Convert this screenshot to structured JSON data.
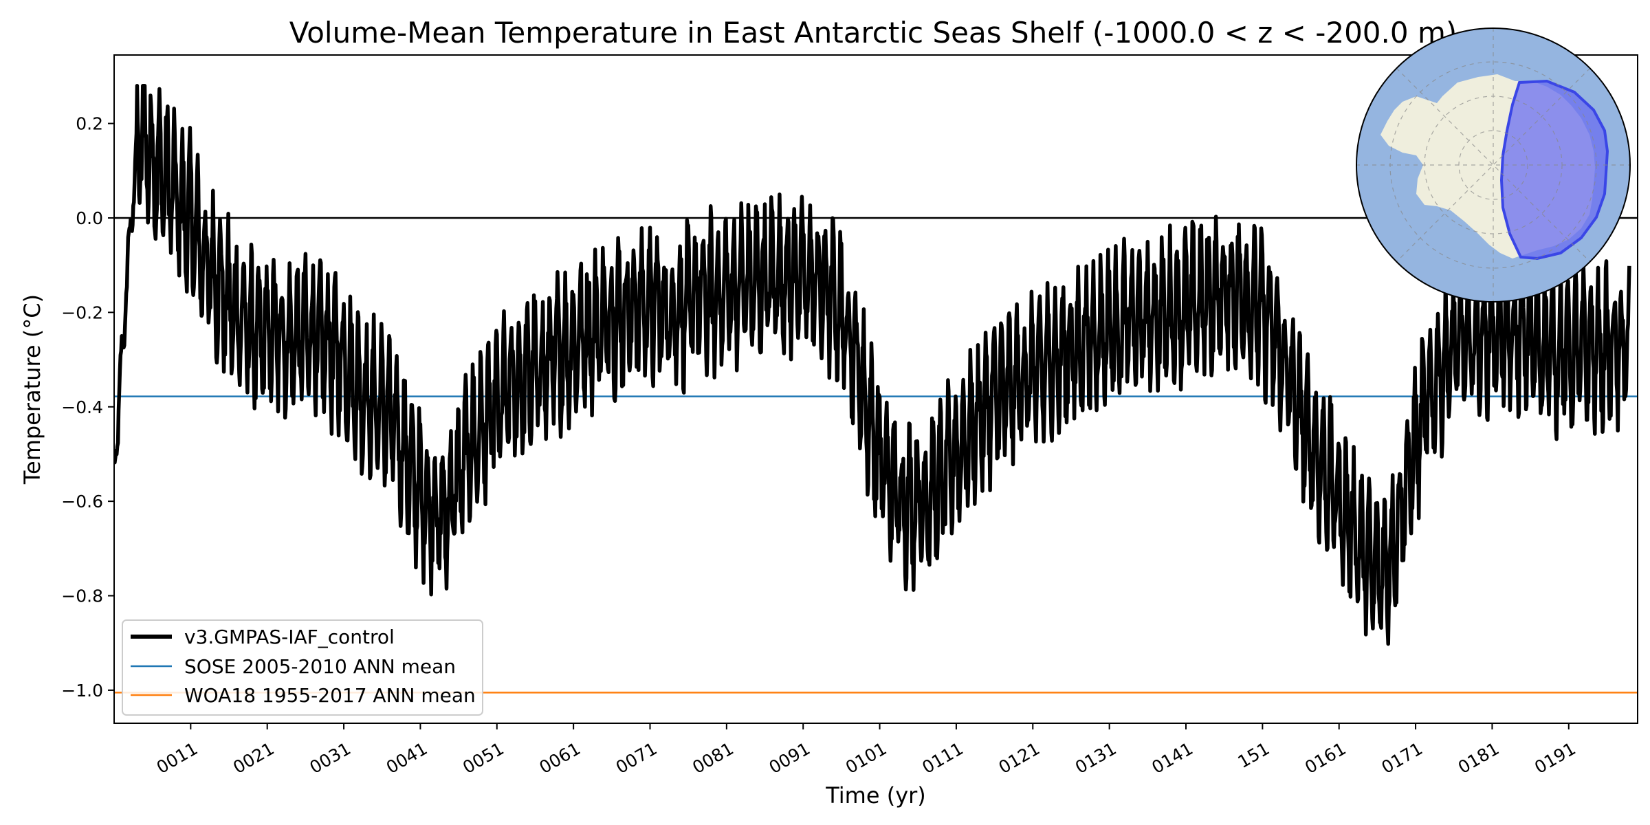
{
  "chart_data": {
    "type": "line",
    "title": "Volume-Mean Temperature in East Antarctic Seas Shelf (-1000.0 < z < -200.0 m)",
    "xlabel": "Time (yr)",
    "ylabel": "Temperature ($^\\circ$C)",
    "ylabel_display": "Temperature (°C)",
    "xlim": [
      1,
      200
    ],
    "ylim": [
      -1.07,
      0.345
    ],
    "x_ticks": [
      11,
      21,
      31,
      41,
      51,
      61,
      71,
      81,
      91,
      101,
      111,
      121,
      131,
      141,
      151,
      161,
      171,
      181,
      191
    ],
    "x_tick_labels": [
      "0011",
      "0021",
      "0031",
      "0041",
      "0051",
      "0061",
      "0071",
      "0081",
      "0091",
      "0101",
      "0111",
      "0121",
      "0131",
      "0141",
      "151",
      "0161",
      "0171",
      "0181",
      "0191"
    ],
    "y_ticks": [
      -1.0,
      -0.8,
      -0.6,
      -0.4,
      -0.2,
      0.0,
      0.2
    ],
    "y_tick_labels": [
      "−1.0",
      "−0.8",
      "−0.6",
      "−0.4",
      "−0.2",
      "0.0",
      "0.2"
    ],
    "zero_line": 0.0,
    "legend_position": "lower-left",
    "series": [
      {
        "name": "v3.GMPAS-IAF_control",
        "color": "#000000",
        "style": "monthly time series, thick line",
        "x": [
          1,
          2,
          3,
          4,
          5,
          6,
          7,
          8,
          9,
          10,
          11,
          12,
          13,
          14,
          15,
          16,
          17,
          18,
          19,
          20,
          21,
          22,
          23,
          24,
          25,
          26,
          27,
          28,
          29,
          30,
          31,
          32,
          33,
          34,
          35,
          36,
          37,
          38,
          39,
          40,
          41,
          42,
          43,
          44,
          45,
          46,
          47,
          48,
          49,
          50,
          51,
          52,
          53,
          54,
          55,
          56,
          57,
          58,
          59,
          60,
          61,
          62,
          63,
          64,
          65,
          66,
          67,
          68,
          69,
          70,
          71,
          72,
          73,
          74,
          75,
          76,
          77,
          78,
          79,
          80,
          81,
          82,
          83,
          84,
          85,
          86,
          87,
          88,
          89,
          90,
          91,
          92,
          93,
          94,
          95,
          96,
          97,
          98,
          99,
          100,
          101,
          102,
          103,
          104,
          105,
          106,
          107,
          108,
          109,
          110,
          111,
          112,
          113,
          114,
          115,
          116,
          117,
          118,
          119,
          120,
          121,
          122,
          123,
          124,
          125,
          126,
          127,
          128,
          129,
          130,
          131,
          132,
          133,
          134,
          135,
          136,
          137,
          138,
          139,
          140,
          141,
          142,
          143,
          144,
          145,
          146,
          147,
          148,
          149,
          150,
          151,
          152,
          153,
          154,
          155,
          156,
          157,
          158,
          159,
          160,
          161,
          162,
          163,
          164,
          165,
          166,
          167,
          168,
          169,
          170,
          171,
          172,
          173,
          174,
          175,
          176,
          177,
          178,
          179,
          180,
          181,
          182,
          183,
          184,
          185,
          186,
          187,
          188,
          189,
          190,
          191,
          192,
          193,
          194,
          195,
          196,
          197,
          198,
          199,
          200
        ],
        "annual_mean": [
          -0.55,
          -0.3,
          -0.05,
          0.15,
          0.17,
          0.12,
          0.1,
          0.08,
          0.05,
          0.02,
          0.0,
          -0.05,
          -0.1,
          -0.12,
          -0.15,
          -0.18,
          -0.2,
          -0.22,
          -0.24,
          -0.26,
          -0.25,
          -0.24,
          -0.25,
          -0.26,
          -0.25,
          -0.24,
          -0.25,
          -0.26,
          -0.27,
          -0.28,
          -0.3,
          -0.33,
          -0.36,
          -0.38,
          -0.39,
          -0.4,
          -0.42,
          -0.45,
          -0.5,
          -0.55,
          -0.58,
          -0.6,
          -0.62,
          -0.63,
          -0.6,
          -0.55,
          -0.5,
          -0.47,
          -0.45,
          -0.43,
          -0.4,
          -0.38,
          -0.36,
          -0.35,
          -0.34,
          -0.33,
          -0.32,
          -0.3,
          -0.29,
          -0.28,
          -0.27,
          -0.25,
          -0.24,
          -0.23,
          -0.22,
          -0.21,
          -0.2,
          -0.2,
          -0.19,
          -0.18,
          -0.18,
          -0.19,
          -0.2,
          -0.2,
          -0.19,
          -0.18,
          -0.17,
          -0.17,
          -0.16,
          -0.16,
          -0.15,
          -0.15,
          -0.14,
          -0.14,
          -0.13,
          -0.13,
          -0.12,
          -0.12,
          -0.12,
          -0.12,
          -0.12,
          -0.13,
          -0.14,
          -0.15,
          -0.17,
          -0.2,
          -0.24,
          -0.3,
          -0.38,
          -0.45,
          -0.5,
          -0.55,
          -0.58,
          -0.6,
          -0.6,
          -0.6,
          -0.6,
          -0.58,
          -0.56,
          -0.53,
          -0.5,
          -0.48,
          -0.45,
          -0.42,
          -0.4,
          -0.38,
          -0.37,
          -0.36,
          -0.35,
          -0.34,
          -0.33,
          -0.32,
          -0.31,
          -0.3,
          -0.29,
          -0.28,
          -0.27,
          -0.26,
          -0.25,
          -0.24,
          -0.23,
          -0.23,
          -0.22,
          -0.22,
          -0.22,
          -0.21,
          -0.21,
          -0.2,
          -0.2,
          -0.19,
          -0.19,
          -0.18,
          -0.18,
          -0.17,
          -0.17,
          -0.16,
          -0.16,
          -0.16,
          -0.17,
          -0.18,
          -0.2,
          -0.23,
          -0.27,
          -0.32,
          -0.37,
          -0.42,
          -0.46,
          -0.5,
          -0.53,
          -0.56,
          -0.6,
          -0.63,
          -0.66,
          -0.7,
          -0.73,
          -0.75,
          -0.74,
          -0.7,
          -0.62,
          -0.55,
          -0.48,
          -0.42,
          -0.37,
          -0.33,
          -0.3,
          -0.28,
          -0.27,
          -0.26,
          -0.25,
          -0.25,
          -0.24,
          -0.24,
          -0.24,
          -0.25,
          -0.25,
          -0.26,
          -0.27,
          -0.27,
          -0.28,
          -0.28,
          -0.28,
          -0.28,
          -0.28,
          -0.28,
          -0.28,
          -0.28,
          -0.28,
          -0.28
        ],
        "seasonal_amplitude": 0.13,
        "y_range_observed": [
          -0.96,
          0.28
        ]
      },
      {
        "name": "SOSE 2005-2010 ANN mean",
        "color": "#1f77b4",
        "value": -0.378
      },
      {
        "name": "WOA18 1955-2017 ANN mean",
        "color": "#ff7f0e",
        "value": -1.005
      }
    ]
  },
  "inset_map": {
    "description_label": "East Antarctic Seas Shelf region map",
    "ocean_color": "#95b5e0",
    "land_color": "#efeedd",
    "region_color": "#6b6ff0"
  }
}
